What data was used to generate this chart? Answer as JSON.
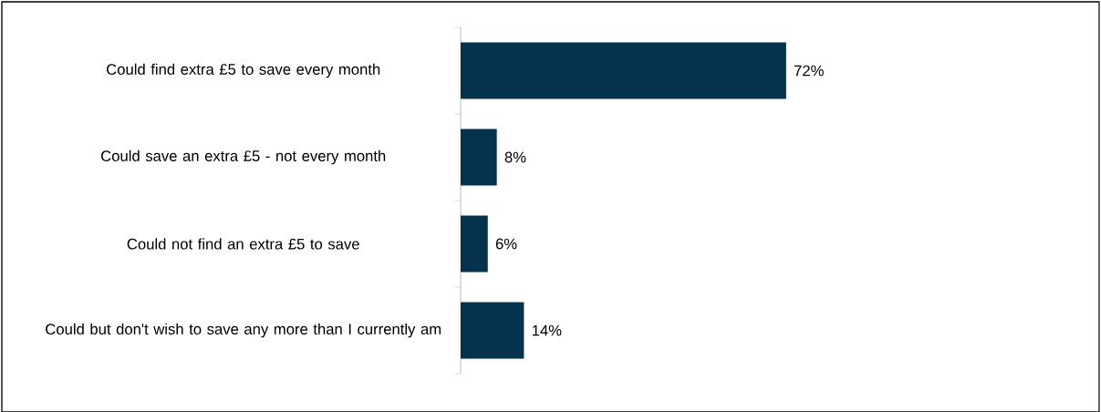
{
  "chart_data": {
    "type": "bar",
    "orientation": "horizontal",
    "categories": [
      "Could find extra £5 to save every month",
      "Could save an extra £5 - not every month",
      "Could not find an extra £5 to save",
      "Could but don't wish to save any more than I currently am"
    ],
    "values": [
      72,
      8,
      6,
      14
    ],
    "color": "#05324c",
    "value_labels": [
      "72%",
      "8%",
      "6%",
      "14%"
    ]
  }
}
